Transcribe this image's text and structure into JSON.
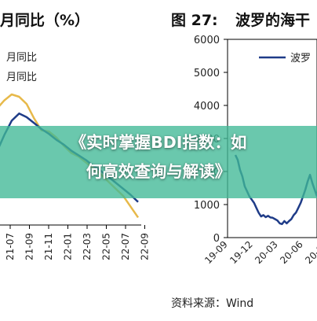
{
  "banner": {
    "line1": "《实时掌握BDI指数：如",
    "line2": "何高效查询与解读》"
  },
  "left_panel": {
    "title": "月同比（%）",
    "legend": [
      "月同比",
      "月同比"
    ]
  },
  "right_panel": {
    "figure_number": "图 27:",
    "title": "波罗的海干",
    "source": "资料来源：Wind"
  },
  "chart_data": [
    {
      "type": "line",
      "title": "月同比（%）",
      "x_ticks": [
        "21-07",
        "21-09",
        "21-11",
        "22-01",
        "22-03",
        "22-05",
        "22-07",
        "22-09"
      ],
      "series": [
        {
          "name": "月同比",
          "color": "#e7b94a",
          "values": [
            5.3,
            5.65,
            5.9,
            5.8,
            5.5,
            4.9,
            4.4,
            4.35,
            4.1,
            3.75,
            3.45,
            3.3,
            3.05,
            2.8,
            2.55,
            2.25,
            1.95,
            1.65,
            1.2,
            0.75
          ]
        },
        {
          "name": "月同比",
          "color": "#1f3c88",
          "values": [
            3.5,
            4.2,
            4.8,
            5.1,
            4.95,
            4.7,
            4.45,
            4.25,
            4.0,
            3.8,
            3.55,
            3.35,
            3.15,
            2.9,
            2.7,
            2.45,
            2.2,
            1.95,
            1.7,
            1.4
          ]
        }
      ]
    },
    {
      "type": "line",
      "title": "波罗的海干",
      "ylim": [
        0,
        6000
      ],
      "y_ticks": [
        0,
        1000,
        2000,
        3000,
        4000,
        5000,
        6000
      ],
      "x_ticks": [
        "19-09",
        "19-12",
        "20-03",
        "20-06",
        "20-09"
      ],
      "legend_position": "top-right",
      "series": [
        {
          "name": "波罗",
          "color": "#1f3c88",
          "values": [
            2500,
            2350,
            2050,
            1850,
            1550,
            1400,
            1250,
            1150,
            1050,
            900,
            750,
            640,
            680,
            620,
            660,
            610,
            600,
            560,
            520,
            430,
            410,
            500,
            430,
            500,
            560,
            680,
            760,
            900,
            1050,
            1250,
            1450,
            1700,
            1900,
            1650,
            1450,
            1250
          ]
        }
      ]
    }
  ]
}
